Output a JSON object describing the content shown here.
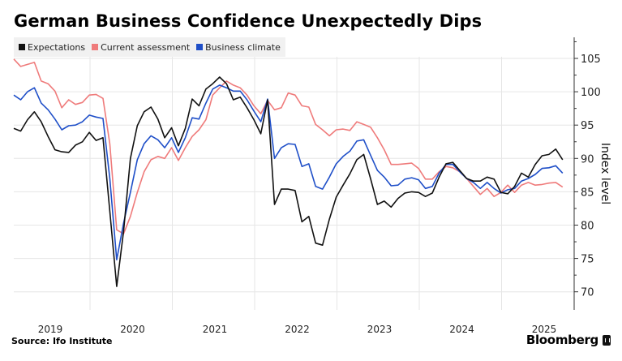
{
  "title": "German Business Confidence Unexpectedly Dips",
  "source": "Source: Ifo Institute",
  "brand": "Bloomberg",
  "chart_data": {
    "type": "line",
    "title": "German Business Confidence Unexpectedly Dips",
    "xlabel": "",
    "ylabel": "Index level",
    "y_axis_position": "right",
    "ylim": [
      67.5,
      108.5
    ],
    "yticks": [
      70,
      75,
      80,
      85,
      90,
      95,
      100,
      105
    ],
    "x_start": "2019-01",
    "x_end": "2025-09",
    "frequency": "monthly",
    "xtick_labels": [
      "2019",
      "2020",
      "2021",
      "2022",
      "2023",
      "2024",
      "2025"
    ],
    "grid": true,
    "legend_position": "top-left",
    "series": [
      {
        "name": "Expectations",
        "color": "#111111",
        "values": [
          94.5,
          94.1,
          95.8,
          97.0,
          95.5,
          93.3,
          91.3,
          91.0,
          90.9,
          92.0,
          92.5,
          93.9,
          92.7,
          93.1,
          82.1,
          70.8,
          79.1,
          90.0,
          94.9,
          97.0,
          97.7,
          95.9,
          93.1,
          94.6,
          91.9,
          94.5,
          98.9,
          97.9,
          100.4,
          101.2,
          102.2,
          101.2,
          98.8,
          99.2,
          97.6,
          95.8,
          93.7,
          98.8,
          83.1,
          85.4,
          85.4,
          85.2,
          80.5,
          81.3,
          77.3,
          77.0,
          80.9,
          84.2,
          86.0,
          87.7,
          89.8,
          90.6,
          87.0,
          83.1,
          83.6,
          82.7,
          84.0,
          84.8,
          85.0,
          84.9,
          84.3,
          84.8,
          87.2,
          89.2,
          89.4,
          88.2,
          87.0,
          86.6,
          86.6,
          87.2,
          86.9,
          84.9,
          84.7,
          85.8,
          87.8,
          87.2,
          89.1,
          90.4,
          90.6,
          91.4,
          89.8
        ]
      },
      {
        "name": "Current assessment",
        "color": "#ef7b7b",
        "values": [
          104.9,
          103.8,
          104.1,
          104.4,
          101.6,
          101.2,
          100.1,
          97.6,
          98.8,
          98.1,
          98.4,
          99.5,
          99.6,
          99.0,
          92.2,
          79.3,
          78.7,
          81.3,
          84.9,
          88.0,
          89.8,
          90.3,
          90.0,
          91.6,
          89.7,
          91.6,
          93.3,
          94.3,
          95.8,
          99.5,
          100.6,
          101.6,
          101.0,
          100.6,
          99.5,
          97.9,
          96.7,
          98.7,
          97.3,
          97.6,
          99.8,
          99.5,
          97.9,
          97.7,
          95.1,
          94.3,
          93.4,
          94.3,
          94.4,
          94.2,
          95.5,
          95.1,
          94.7,
          93.1,
          91.3,
          89.1,
          89.1,
          89.2,
          89.3,
          88.5,
          86.9,
          86.9,
          88.0,
          88.8,
          88.6,
          88.0,
          87.0,
          85.8,
          84.6,
          85.5,
          84.3,
          84.9,
          86.0,
          84.9,
          86.0,
          86.4,
          86.0,
          86.1,
          86.3,
          86.4,
          85.7
        ]
      },
      {
        "name": "Business climate",
        "color": "#1f4fc8",
        "values": [
          99.5,
          98.8,
          100.0,
          100.6,
          98.3,
          97.3,
          95.9,
          94.3,
          94.9,
          95.0,
          95.5,
          96.5,
          96.2,
          96.0,
          87.0,
          74.8,
          80.3,
          84.9,
          89.8,
          92.2,
          93.4,
          92.8,
          91.6,
          93.1,
          90.9,
          93.1,
          96.1,
          95.9,
          98.3,
          100.4,
          101.0,
          100.6,
          100.1,
          100.1,
          98.8,
          97.1,
          95.5,
          98.9,
          90.0,
          91.6,
          92.2,
          92.1,
          88.8,
          89.2,
          85.8,
          85.4,
          87.2,
          89.2,
          90.3,
          91.1,
          92.6,
          92.8,
          90.5,
          88.2,
          87.2,
          85.9,
          86.0,
          86.9,
          87.1,
          86.8,
          85.5,
          85.8,
          87.8,
          89.1,
          89.1,
          88.0,
          87.0,
          86.4,
          85.5,
          86.4,
          85.5,
          84.8,
          85.3,
          85.5,
          86.6,
          87.0,
          87.6,
          88.5,
          88.6,
          88.9,
          87.8
        ]
      }
    ]
  }
}
